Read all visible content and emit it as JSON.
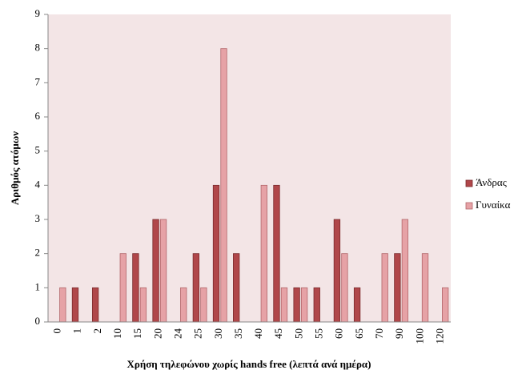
{
  "chart_data": {
    "type": "bar",
    "x_label": "Χρήση τηλεφώνου χωρίς hands free (λεπτά ανά ημέρα)",
    "y_label": "Αριθμός ατόμων",
    "categories": [
      "0",
      "1",
      "2",
      "10",
      "15",
      "20",
      "24",
      "25",
      "30",
      "35",
      "40",
      "45",
      "50",
      "55",
      "60",
      "65",
      "70",
      "90",
      "100",
      "120"
    ],
    "series": [
      {
        "name": "Άνδρας",
        "color": "#b0474a",
        "values": [
          0,
          1,
          1,
          0,
          2,
          3,
          0,
          2,
          4,
          2,
          0,
          4,
          1,
          1,
          3,
          1,
          0,
          2,
          0,
          0
        ]
      },
      {
        "name": "Γυναίκα",
        "color": "#e6a2a6",
        "values": [
          1,
          0,
          0,
          2,
          1,
          3,
          1,
          1,
          8,
          0,
          4,
          1,
          1,
          0,
          2,
          0,
          2,
          3,
          2,
          1
        ]
      }
    ],
    "ylim": [
      0,
      9
    ],
    "yticks": [
      0,
      1,
      2,
      3,
      4,
      5,
      6,
      7,
      8,
      9
    ],
    "grid": false,
    "legend": "right"
  }
}
